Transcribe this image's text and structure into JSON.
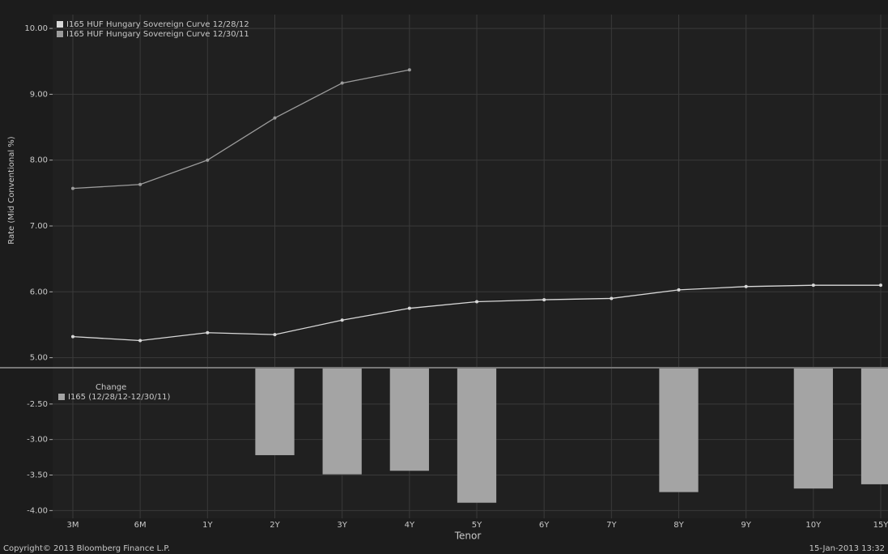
{
  "chart_data": [
    {
      "type": "line",
      "y_label": "Rate (Mid Conventional %)",
      "ylim": [
        4.86,
        10.21
      ],
      "yticks": [
        {
          "value": 5,
          "label": "5.00"
        },
        {
          "value": 6,
          "label": "6.00"
        },
        {
          "value": 7,
          "label": "7.00"
        },
        {
          "value": 8,
          "label": "8.00"
        },
        {
          "value": 9,
          "label": "9.00"
        },
        {
          "value": 10,
          "label": "10.00"
        }
      ],
      "grid": true,
      "legend": "top-left",
      "series": [
        {
          "name": "I165 HUF Hungary Sovereign Curve 12/28/12",
          "color": "#d8d8d8",
          "values": [
            5.32,
            5.26,
            5.38,
            5.35,
            5.57,
            5.75,
            5.85,
            5.88,
            5.9,
            6.03,
            6.08,
            6.1,
            6.1
          ]
        },
        {
          "name": "I165 HUF Hungary Sovereign Curve 12/30/11",
          "color": "#9c9c9c",
          "values": [
            7.57,
            7.63,
            8.0,
            8.64,
            9.17,
            9.37,
            null,
            null,
            null,
            null,
            null,
            null,
            null
          ]
        }
      ]
    },
    {
      "type": "bar",
      "x_label": "Tenor",
      "categories": [
        "3M",
        "6M",
        "1Y",
        "2Y",
        "3Y",
        "4Y",
        "5Y",
        "6Y",
        "7Y",
        "8Y",
        "9Y",
        "10Y",
        "15Y"
      ],
      "ylim": [
        -4.11,
        -2.0
      ],
      "yticks": [
        {
          "value": -2.5,
          "label": "-2.50"
        },
        {
          "value": -3,
          "label": "-3.00"
        },
        {
          "value": -3.5,
          "label": "-3.50"
        },
        {
          "value": -4,
          "label": "-4.00"
        }
      ],
      "grid": true,
      "legend": "top-left",
      "legend_title": "Change",
      "series": [
        {
          "name": "I165 (12/28/12-12/30/11)",
          "color": "#a4a4a4",
          "values": [
            null,
            null,
            null,
            -3.22,
            -3.49,
            -3.44,
            -3.89,
            null,
            null,
            -3.74,
            null,
            -3.69,
            -3.63
          ]
        }
      ]
    }
  ],
  "footer": {
    "copyright": "Copyright© 2013 Bloomberg Finance L.P.",
    "timestamp": "15-Jan-2013 13:32"
  }
}
